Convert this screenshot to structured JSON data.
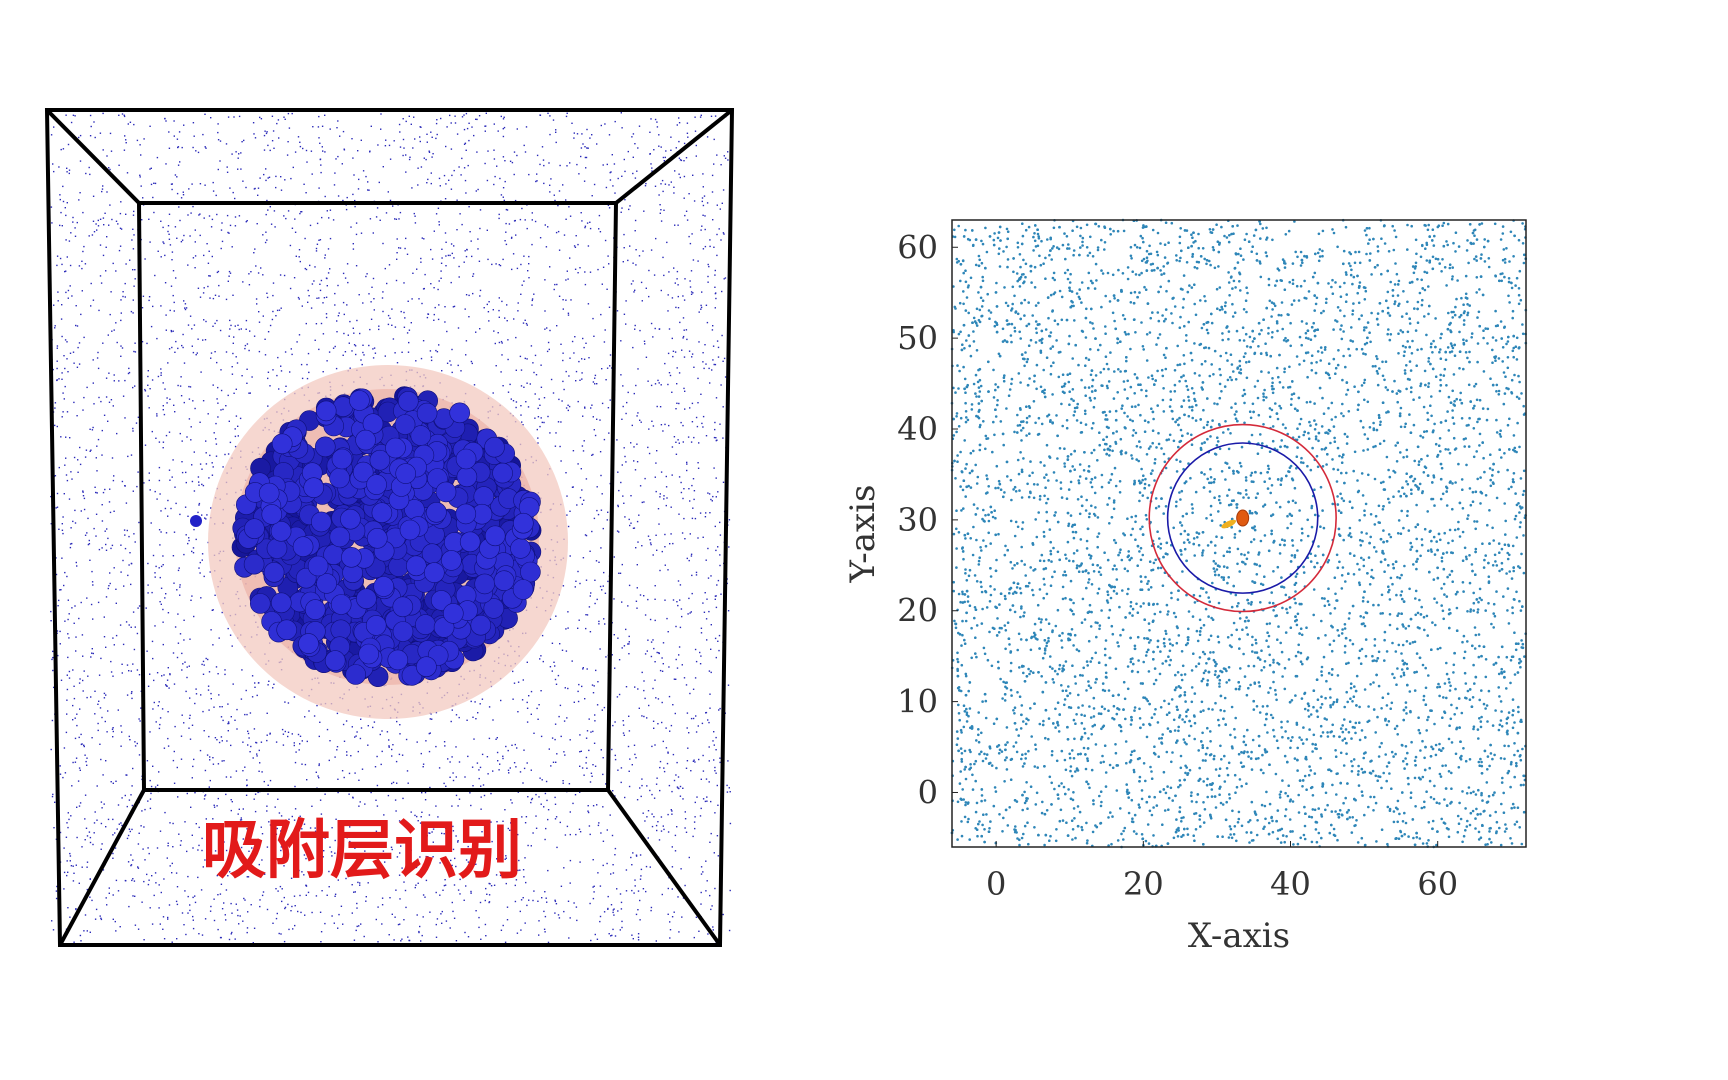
{
  "left_panel": {
    "caption": "吸附层识别",
    "colors": {
      "box_edges": "#000000",
      "solvent_dots": "#2a2ab8",
      "cluster_spheres": "#2222c8",
      "adsorption_layer_outer": "#f3c9c0",
      "adsorption_layer_inner": "#eaa79c",
      "caption": "#e21a1a"
    },
    "scene": {
      "description_items": [
        "simulation-box",
        "solvent-molecules",
        "nanoparticle-cluster",
        "adsorption-layer-shells",
        "isolated-molecule"
      ]
    }
  },
  "chart_data": {
    "type": "scatter",
    "xlabel": "X-axis",
    "ylabel": "Y-axis",
    "xlim": [
      -6,
      72
    ],
    "ylim": [
      -6,
      63
    ],
    "x_ticks": [
      0,
      20,
      40,
      60
    ],
    "y_ticks": [
      0,
      10,
      20,
      30,
      40,
      50,
      60
    ],
    "grid": false,
    "legend": "none",
    "colors": {
      "points": "#2e86b8",
      "inner_circle": "#1a1aa8",
      "outer_circle": "#d42a3a",
      "center_marker": "#e05a10",
      "center_trail": "#f0b020"
    },
    "circles": [
      {
        "name": "",
        "center": [
          33.5,
          30.2
        ],
        "radius": 10.2,
        "color": "#1a1aa8"
      },
      {
        "name": "",
        "center": [
          33.5,
          30.2
        ],
        "radius": 12.7,
        "color": "#d42a3a"
      }
    ],
    "center_point": [
      33.5,
      30.2
    ],
    "point_count_estimate": 6000
  }
}
